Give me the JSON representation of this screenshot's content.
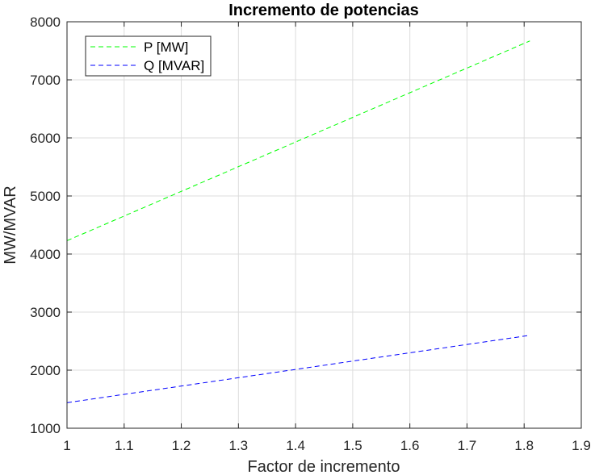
{
  "chart_data": {
    "type": "line",
    "title": "Incremento de potencias",
    "xlabel": "Factor de incremento",
    "ylabel": "MW/MVAR",
    "xlim": [
      1,
      1.9
    ],
    "ylim": [
      1000,
      8000
    ],
    "xticks": [
      "1",
      "1.1",
      "1.2",
      "1.3",
      "1.4",
      "1.5",
      "1.6",
      "1.7",
      "1.8",
      "1.9"
    ],
    "yticks": [
      "1000",
      "2000",
      "3000",
      "4000",
      "5000",
      "6000",
      "7000",
      "8000"
    ],
    "grid": true,
    "legend_position": "top-left",
    "series": [
      {
        "name": "P [MW]",
        "color": "#00ff00",
        "line_style": "dashed",
        "x": [
          1.0,
          1.81
        ],
        "y": [
          4230,
          7670
        ]
      },
      {
        "name": "Q [MVAR]",
        "color": "#0000ff",
        "line_style": "dashed",
        "x": [
          1.0,
          1.81
        ],
        "y": [
          1440,
          2600
        ]
      }
    ]
  }
}
